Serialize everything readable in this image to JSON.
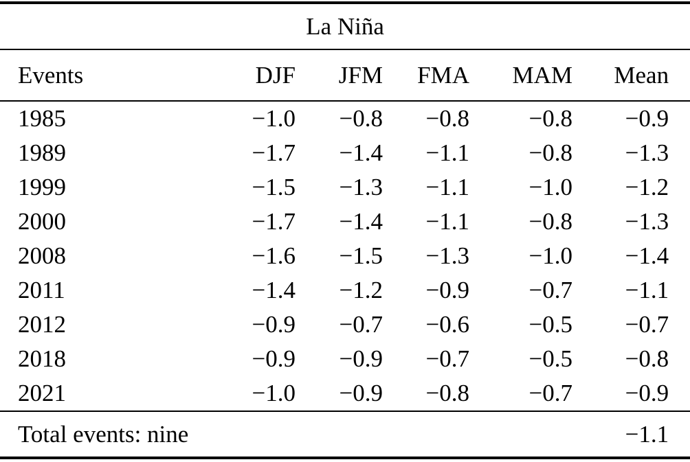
{
  "title": "La Niña",
  "columns": [
    "Events",
    "DJF",
    "JFM",
    "FMA",
    "MAM",
    "Mean"
  ],
  "rows": [
    {
      "event": "1985",
      "djf": "−1.0",
      "jfm": "−0.8",
      "fma": "−0.8",
      "mam": "−0.8",
      "mean": "−0.9"
    },
    {
      "event": "1989",
      "djf": "−1.7",
      "jfm": "−1.4",
      "fma": "−1.1",
      "mam": "−0.8",
      "mean": "−1.3"
    },
    {
      "event": "1999",
      "djf": "−1.5",
      "jfm": "−1.3",
      "fma": "−1.1",
      "mam": "−1.0",
      "mean": "−1.2"
    },
    {
      "event": "2000",
      "djf": "−1.7",
      "jfm": "−1.4",
      "fma": "−1.1",
      "mam": "−0.8",
      "mean": "−1.3"
    },
    {
      "event": "2008",
      "djf": "−1.6",
      "jfm": "−1.5",
      "fma": "−1.3",
      "mam": "−1.0",
      "mean": "−1.4"
    },
    {
      "event": "2011",
      "djf": "−1.4",
      "jfm": "−1.2",
      "fma": "−0.9",
      "mam": "−0.7",
      "mean": "−1.1"
    },
    {
      "event": "2012",
      "djf": "−0.9",
      "jfm": "−0.7",
      "fma": "−0.6",
      "mam": "−0.5",
      "mean": "−0.7"
    },
    {
      "event": "2018",
      "djf": "−0.9",
      "jfm": "−0.9",
      "fma": "−0.7",
      "mam": "−0.5",
      "mean": "−0.8"
    },
    {
      "event": "2021",
      "djf": "−1.0",
      "jfm": "−0.9",
      "fma": "−0.8",
      "mam": "−0.7",
      "mean": "−0.9"
    }
  ],
  "footer": {
    "label": "Total events: nine",
    "mean": "−1.1"
  },
  "colors": {
    "text": "#000000",
    "background": "#ffffff",
    "rule": "#000000"
  },
  "chart_data": {
    "type": "table",
    "title": "La Niña",
    "columns": [
      "Events",
      "DJF",
      "JFM",
      "FMA",
      "MAM",
      "Mean"
    ],
    "rows": [
      [
        "1985",
        -1.0,
        -0.8,
        -0.8,
        -0.8,
        -0.9
      ],
      [
        "1989",
        -1.7,
        -1.4,
        -1.1,
        -0.8,
        -1.3
      ],
      [
        "1999",
        -1.5,
        -1.3,
        -1.1,
        -1.0,
        -1.2
      ],
      [
        "2000",
        -1.7,
        -1.4,
        -1.1,
        -0.8,
        -1.3
      ],
      [
        "2008",
        -1.6,
        -1.5,
        -1.3,
        -1.0,
        -1.4
      ],
      [
        "2011",
        -1.4,
        -1.2,
        -0.9,
        -0.7,
        -1.1
      ],
      [
        "2012",
        -0.9,
        -0.7,
        -0.6,
        -0.5,
        -0.7
      ],
      [
        "2018",
        -0.9,
        -0.9,
        -0.7,
        -0.5,
        -0.8
      ],
      [
        "2021",
        -1.0,
        -0.9,
        -0.8,
        -0.7,
        -0.9
      ]
    ],
    "footer": {
      "label": "Total events: nine",
      "overall_mean": -1.1
    }
  }
}
